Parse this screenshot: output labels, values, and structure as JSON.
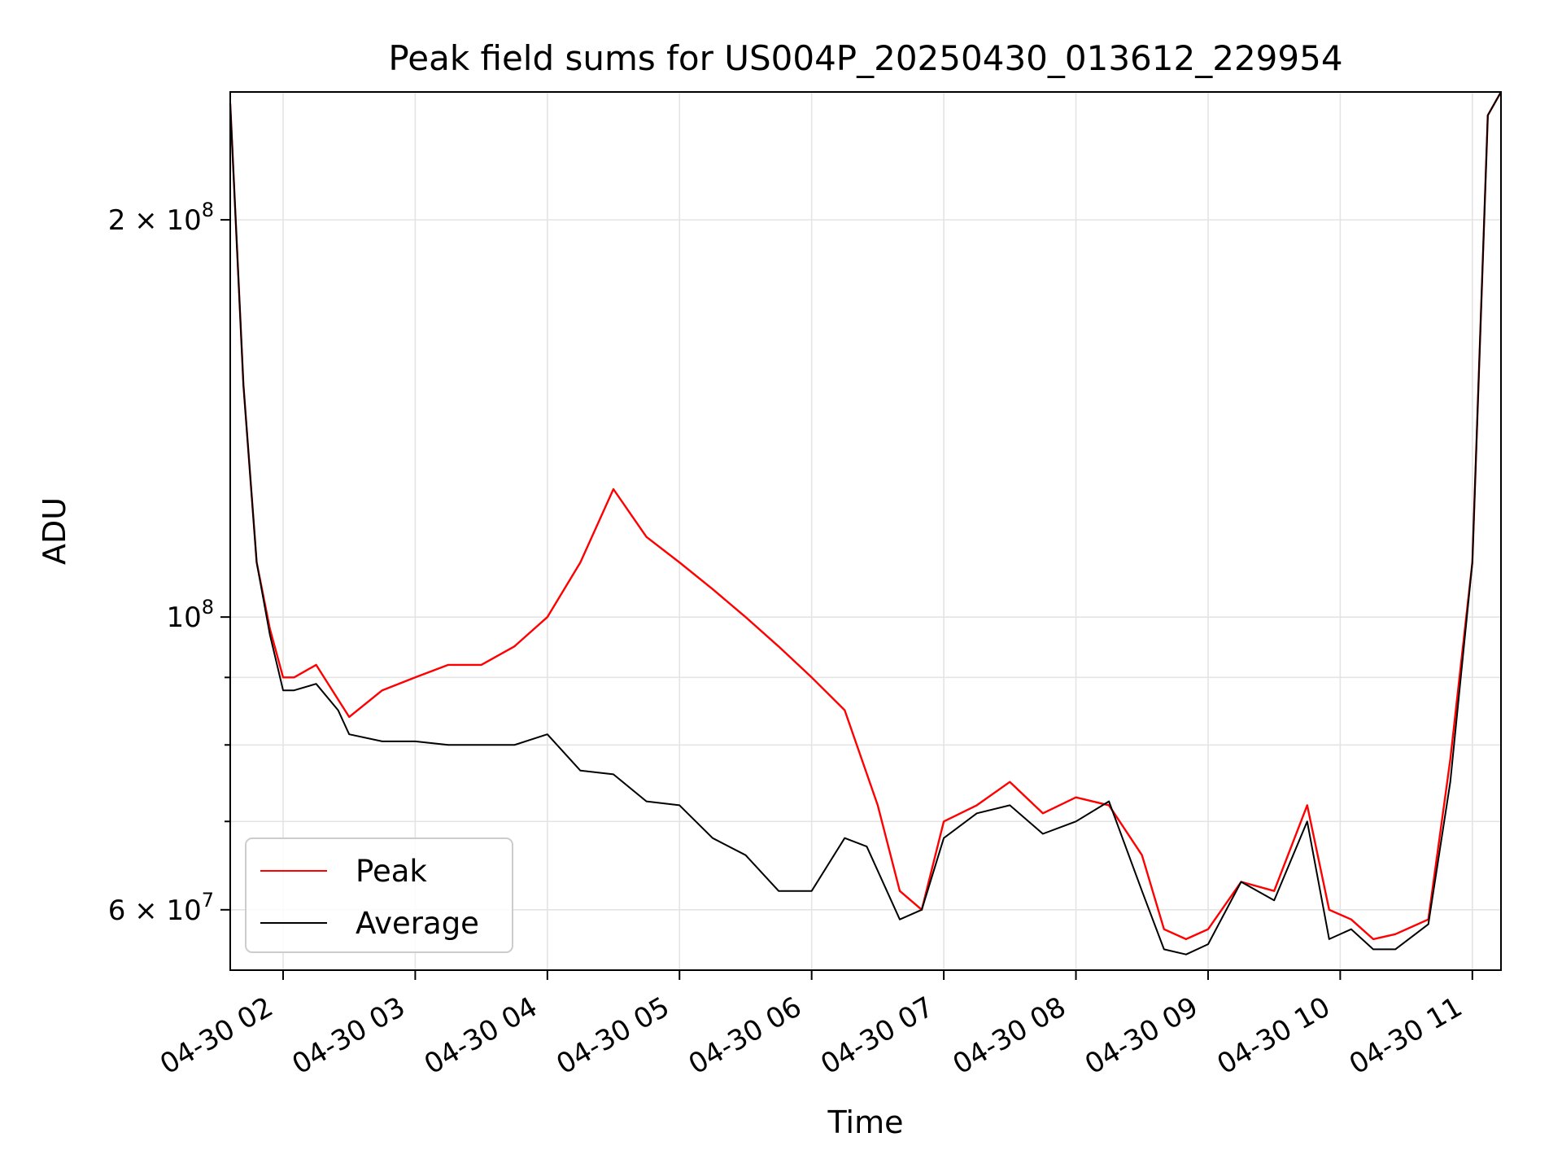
{
  "chart_data": {
    "type": "line",
    "title": "Peak field sums for US004P_20250430_013612_229954",
    "xlabel": "Time",
    "ylabel": "ADU",
    "yscale": "log",
    "xlim": [
      "2025-04-30 01:36",
      "2025-04-30 11:13"
    ],
    "ylim": [
      54000000,
      250000000
    ],
    "grid": true,
    "legend_position": "lower-left",
    "x_ticks": [
      {
        "t": "2025-04-30 02:00",
        "label": "04-30 02"
      },
      {
        "t": "2025-04-30 03:00",
        "label": "04-30 03"
      },
      {
        "t": "2025-04-30 04:00",
        "label": "04-30 04"
      },
      {
        "t": "2025-04-30 05:00",
        "label": "04-30 05"
      },
      {
        "t": "2025-04-30 06:00",
        "label": "04-30 06"
      },
      {
        "t": "2025-04-30 07:00",
        "label": "04-30 07"
      },
      {
        "t": "2025-04-30 08:00",
        "label": "04-30 08"
      },
      {
        "t": "2025-04-30 09:00",
        "label": "04-30 09"
      },
      {
        "t": "2025-04-30 10:00",
        "label": "04-30 10"
      },
      {
        "t": "2025-04-30 11:00",
        "label": "04-30 11"
      }
    ],
    "y_ticks_major": [
      {
        "value": 200000000,
        "mantissa": "2",
        "times": "×",
        "base": "10",
        "exp": "8"
      },
      {
        "value": 100000000,
        "mantissa": "",
        "times": "",
        "base": "10",
        "exp": "8"
      },
      {
        "value": 60000000,
        "mantissa": "6",
        "times": "×",
        "base": "10",
        "exp": "7"
      }
    ],
    "y_ticks_minor": [
      70000000,
      80000000,
      90000000
    ],
    "series": [
      {
        "name": "Peak",
        "color": "#ff0000",
        "x": [
          "2025-04-30 01:36",
          "2025-04-30 01:42",
          "2025-04-30 01:48",
          "2025-04-30 01:54",
          "2025-04-30 02:00",
          "2025-04-30 02:05",
          "2025-04-30 02:15",
          "2025-04-30 02:30",
          "2025-04-30 02:45",
          "2025-04-30 03:00",
          "2025-04-30 03:15",
          "2025-04-30 03:30",
          "2025-04-30 03:45",
          "2025-04-30 04:00",
          "2025-04-30 04:15",
          "2025-04-30 04:30",
          "2025-04-30 04:45",
          "2025-04-30 05:00",
          "2025-04-30 05:15",
          "2025-04-30 05:30",
          "2025-04-30 05:45",
          "2025-04-30 06:00",
          "2025-04-30 06:15",
          "2025-04-30 06:30",
          "2025-04-30 06:40",
          "2025-04-30 06:50",
          "2025-04-30 07:00",
          "2025-04-30 07:15",
          "2025-04-30 07:30",
          "2025-04-30 07:45",
          "2025-04-30 08:00",
          "2025-04-30 08:15",
          "2025-04-30 08:30",
          "2025-04-30 08:40",
          "2025-04-30 08:50",
          "2025-04-30 09:00",
          "2025-04-30 09:15",
          "2025-04-30 09:30",
          "2025-04-30 09:45",
          "2025-04-30 09:55",
          "2025-04-30 10:05",
          "2025-04-30 10:15",
          "2025-04-30 10:25",
          "2025-04-30 10:40",
          "2025-04-30 10:50",
          "2025-04-30 11:00",
          "2025-04-30 11:07",
          "2025-04-30 11:13"
        ],
        "y": [
          245000000,
          150000000,
          110000000,
          98000000,
          90000000,
          90000000,
          92000000,
          84000000,
          88000000,
          90000000,
          92000000,
          92000000,
          95000000,
          100000000,
          110000000,
          125000000,
          115000000,
          110000000,
          105000000,
          100000000,
          95000000,
          90000000,
          85000000,
          72000000,
          62000000,
          60000000,
          70000000,
          72000000,
          75000000,
          71000000,
          73000000,
          72000000,
          66000000,
          58000000,
          57000000,
          58000000,
          63000000,
          62000000,
          72000000,
          60000000,
          59000000,
          57000000,
          57500000,
          59000000,
          78000000,
          110000000,
          240000000,
          250000000
        ]
      },
      {
        "name": "Average",
        "color": "#000000",
        "x": [
          "2025-04-30 01:36",
          "2025-04-30 01:42",
          "2025-04-30 01:48",
          "2025-04-30 01:54",
          "2025-04-30 02:00",
          "2025-04-30 02:05",
          "2025-04-30 02:15",
          "2025-04-30 02:25",
          "2025-04-30 02:30",
          "2025-04-30 02:45",
          "2025-04-30 03:00",
          "2025-04-30 03:15",
          "2025-04-30 03:30",
          "2025-04-30 03:45",
          "2025-04-30 04:00",
          "2025-04-30 04:15",
          "2025-04-30 04:30",
          "2025-04-30 04:45",
          "2025-04-30 05:00",
          "2025-04-30 05:15",
          "2025-04-30 05:30",
          "2025-04-30 05:45",
          "2025-04-30 06:00",
          "2025-04-30 06:15",
          "2025-04-30 06:25",
          "2025-04-30 06:40",
          "2025-04-30 06:50",
          "2025-04-30 07:00",
          "2025-04-30 07:15",
          "2025-04-30 07:30",
          "2025-04-30 07:45",
          "2025-04-30 08:00",
          "2025-04-30 08:15",
          "2025-04-30 08:30",
          "2025-04-30 08:40",
          "2025-04-30 08:50",
          "2025-04-30 09:00",
          "2025-04-30 09:15",
          "2025-04-30 09:30",
          "2025-04-30 09:45",
          "2025-04-30 09:55",
          "2025-04-30 10:05",
          "2025-04-30 10:15",
          "2025-04-30 10:25",
          "2025-04-30 10:40",
          "2025-04-30 10:50",
          "2025-04-30 11:00",
          "2025-04-30 11:07",
          "2025-04-30 11:13"
        ],
        "y": [
          245000000,
          150000000,
          110000000,
          97000000,
          88000000,
          88000000,
          89000000,
          85000000,
          81500000,
          80500000,
          80500000,
          80000000,
          80000000,
          80000000,
          81500000,
          76500000,
          76000000,
          72500000,
          72000000,
          68000000,
          66000000,
          62000000,
          62000000,
          68000000,
          67000000,
          59000000,
          60000000,
          68000000,
          71000000,
          72000000,
          68500000,
          70000000,
          72500000,
          62000000,
          56000000,
          55500000,
          56500000,
          63000000,
          61000000,
          70000000,
          57000000,
          58000000,
          56000000,
          56000000,
          58500000,
          75000000,
          110000000,
          240000000,
          250000000
        ]
      }
    ]
  }
}
